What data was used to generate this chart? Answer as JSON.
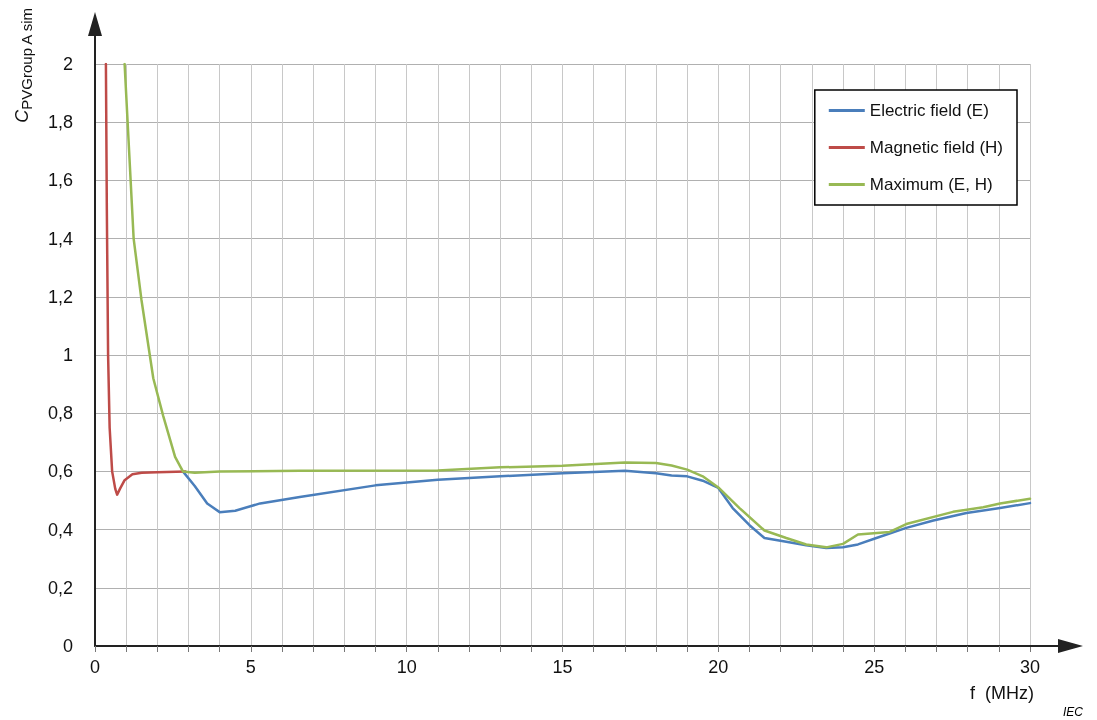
{
  "chart_data": {
    "type": "line",
    "xlabel": "f  (MHz)",
    "ylabel": "C$_{PVGroup A sim}$",
    "xlim": [
      0,
      30
    ],
    "ylim": [
      0,
      2
    ],
    "xticks": [
      0,
      {
        "value": 1,
        "label": null
      },
      {
        "value": 2,
        "label": null
      },
      {
        "value": 3,
        "label": null
      },
      {
        "value": 4,
        "label": null
      },
      5,
      {
        "value": 6,
        "label": null
      },
      {
        "value": 7,
        "label": null
      },
      {
        "value": 8,
        "label": null
      },
      {
        "value": 9,
        "label": null
      },
      10,
      {
        "value": 11,
        "label": null
      },
      {
        "value": 12,
        "label": null
      },
      {
        "value": 13,
        "label": null
      },
      {
        "value": 14,
        "label": null
      },
      15,
      {
        "value": 16,
        "label": null
      },
      {
        "value": 17,
        "label": null
      },
      {
        "value": 18,
        "label": null
      },
      {
        "value": 19,
        "label": null
      },
      20,
      {
        "value": 21,
        "label": null
      },
      {
        "value": 22,
        "label": null
      },
      {
        "value": 23,
        "label": null
      },
      {
        "value": 24,
        "label": null
      },
      25,
      {
        "value": 26,
        "label": null
      },
      {
        "value": 27,
        "label": null
      },
      {
        "value": 28,
        "label": null
      },
      {
        "value": 29,
        "label": null
      },
      30
    ],
    "yticks": [
      0,
      {
        "value": 0.2,
        "label": "0,2"
      },
      {
        "value": 0.4,
        "label": "0,4"
      },
      {
        "value": 0.6,
        "label": "0,6"
      },
      {
        "value": 0.8,
        "label": "0,8"
      },
      1,
      {
        "value": 1.2,
        "label": "1,2"
      },
      {
        "value": 1.4,
        "label": "1,4"
      },
      {
        "value": 1.6,
        "label": "1,6"
      },
      {
        "value": 1.8,
        "label": "1,8"
      },
      2
    ],
    "grid": true,
    "legend": "top right",
    "marker": "none",
    "line_style": "solid",
    "annotations": [
      "IEC"
    ],
    "series": [
      {
        "name": "Electric field (E)",
        "color": "#4a7ebb",
        "x": [
          2.82,
          3.2,
          3.6,
          4.0,
          4.5,
          5.3,
          6.57,
          9.0,
          11.0,
          13.0,
          15.0,
          17.0,
          18.0,
          18.5,
          19.0,
          19.5,
          20.0,
          20.46,
          21.0,
          21.48,
          22.18,
          22.82,
          23.46,
          24.0,
          24.48,
          25.07,
          26.03,
          26.9,
          27.96,
          29.04,
          30
        ],
        "values": [
          0.6,
          0.55,
          0.49,
          0.46,
          0.465,
          0.49,
          0.512,
          0.552,
          0.571,
          0.583,
          0.594,
          0.602,
          0.594,
          0.586,
          0.583,
          0.568,
          0.543,
          0.474,
          0.415,
          0.371,
          0.358,
          0.346,
          0.337,
          0.339,
          0.349,
          0.371,
          0.406,
          0.431,
          0.457,
          0.474,
          0.491
        ]
      },
      {
        "name": "Magnetic field (H)",
        "color": "#be4b48",
        "x": [
          0.35,
          0.38,
          0.42,
          0.47,
          0.55,
          0.65,
          0.71,
          0.8,
          0.95,
          1.2,
          1.5,
          2.0,
          2.9
        ],
        "values": [
          2,
          1.5,
          1.0,
          0.75,
          0.6,
          0.54,
          0.52,
          0.54,
          0.57,
          0.59,
          0.595,
          0.597,
          0.6
        ]
      },
      {
        "name": "Maximum (E, H)",
        "color": "#98b954",
        "x": [
          0.95,
          1.24,
          1.49,
          1.87,
          2.19,
          2.57,
          2.82,
          3.2,
          4.0,
          6.57,
          11.0,
          13.0,
          15.0,
          17.0,
          18.0,
          18.5,
          19.0,
          19.5,
          20.0,
          20.68,
          21.48,
          22.18,
          22.82,
          23.46,
          24.0,
          24.48,
          25.5,
          26.03,
          27.53,
          28.5,
          29.04,
          30
        ],
        "values": [
          2.0,
          1.4,
          1.19,
          0.92,
          0.79,
          0.65,
          0.6,
          0.595,
          0.6,
          0.602,
          0.603,
          0.614,
          0.619,
          0.631,
          0.629,
          0.62,
          0.606,
          0.583,
          0.545,
          0.474,
          0.397,
          0.371,
          0.349,
          0.339,
          0.351,
          0.383,
          0.392,
          0.419,
          0.461,
          0.477,
          0.49,
          0.506
        ]
      }
    ]
  }
}
